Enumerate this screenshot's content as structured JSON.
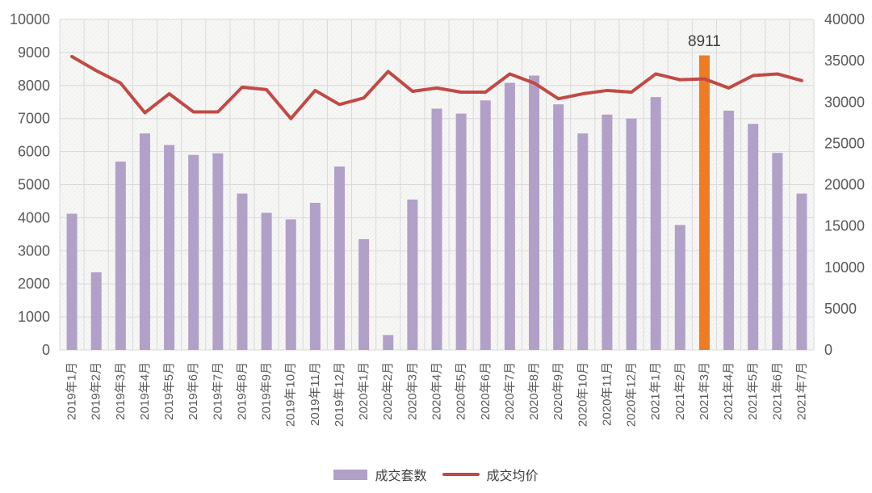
{
  "chart_data": {
    "type": "bar",
    "subtype": "bar+line combo",
    "title": "",
    "xlabel": "",
    "ylabel_left": "",
    "ylabel_right": "",
    "grid": "on",
    "categories": [
      "2019年1月",
      "2019年2月",
      "2019年3月",
      "2019年4月",
      "2019年5月",
      "2019年6月",
      "2019年7月",
      "2019年8月",
      "2019年9月",
      "2019年10月",
      "2019年11月",
      "2019年12月",
      "2020年1月",
      "2020年2月",
      "2020年3月",
      "2020年4月",
      "2020年5月",
      "2020年6月",
      "2020年7月",
      "2020年8月",
      "2020年9月",
      "2020年10月",
      "2020年11月",
      "2020年12月",
      "2021年1月",
      "2021年2月",
      "2021年3月",
      "2021年4月",
      "2021年5月",
      "2021年6月",
      "2021年7月"
    ],
    "series": [
      {
        "name": "成交套数",
        "type": "bar",
        "axis": "left",
        "color": "#B1A0C7",
        "values": [
          4120,
          2350,
          5700,
          6550,
          6200,
          5900,
          5950,
          4730,
          4150,
          3950,
          4450,
          5550,
          3350,
          450,
          4550,
          7300,
          7150,
          7550,
          8080,
          8300,
          7430,
          6550,
          7120,
          7000,
          7650,
          3780,
          8911,
          7240,
          6840,
          5960,
          4730
        ]
      },
      {
        "name": "成交均价",
        "type": "line",
        "axis": "right",
        "color": "#C24944",
        "values": [
          35500,
          33800,
          32300,
          28700,
          31000,
          28800,
          28800,
          31800,
          31500,
          28000,
          31400,
          29700,
          30500,
          33700,
          31300,
          31700,
          31200,
          31200,
          33400,
          32300,
          30400,
          31000,
          31400,
          31200,
          33400,
          32700,
          32800,
          31700,
          33200,
          33400,
          32600
        ]
      }
    ],
    "highlight": {
      "category": "2021年3月",
      "index": 26,
      "color": "#ED7C22",
      "label": "8911"
    },
    "left_axis": {
      "min": 0,
      "max": 10000,
      "step": 1000,
      "ticks": [
        "0",
        "1000",
        "2000",
        "3000",
        "4000",
        "5000",
        "6000",
        "7000",
        "8000",
        "9000",
        "10000"
      ]
    },
    "right_axis": {
      "min": 0,
      "max": 40000,
      "step": 5000,
      "ticks": [
        "0",
        "5000",
        "10000",
        "15000",
        "20000",
        "25000",
        "30000",
        "35000",
        "40000"
      ]
    },
    "legend": {
      "position": "bottom",
      "items": [
        "成交套数",
        "成交均价"
      ]
    }
  },
  "colors": {
    "background": "#ffffff",
    "plot_hatch_base": "#f7f7f6",
    "plot_hatch_line": "#ececeb",
    "gridline": "#d9d9d9",
    "axis_text": "#595959",
    "highlight_label_text": "#3f3f3f",
    "legend_text": "#404040"
  }
}
